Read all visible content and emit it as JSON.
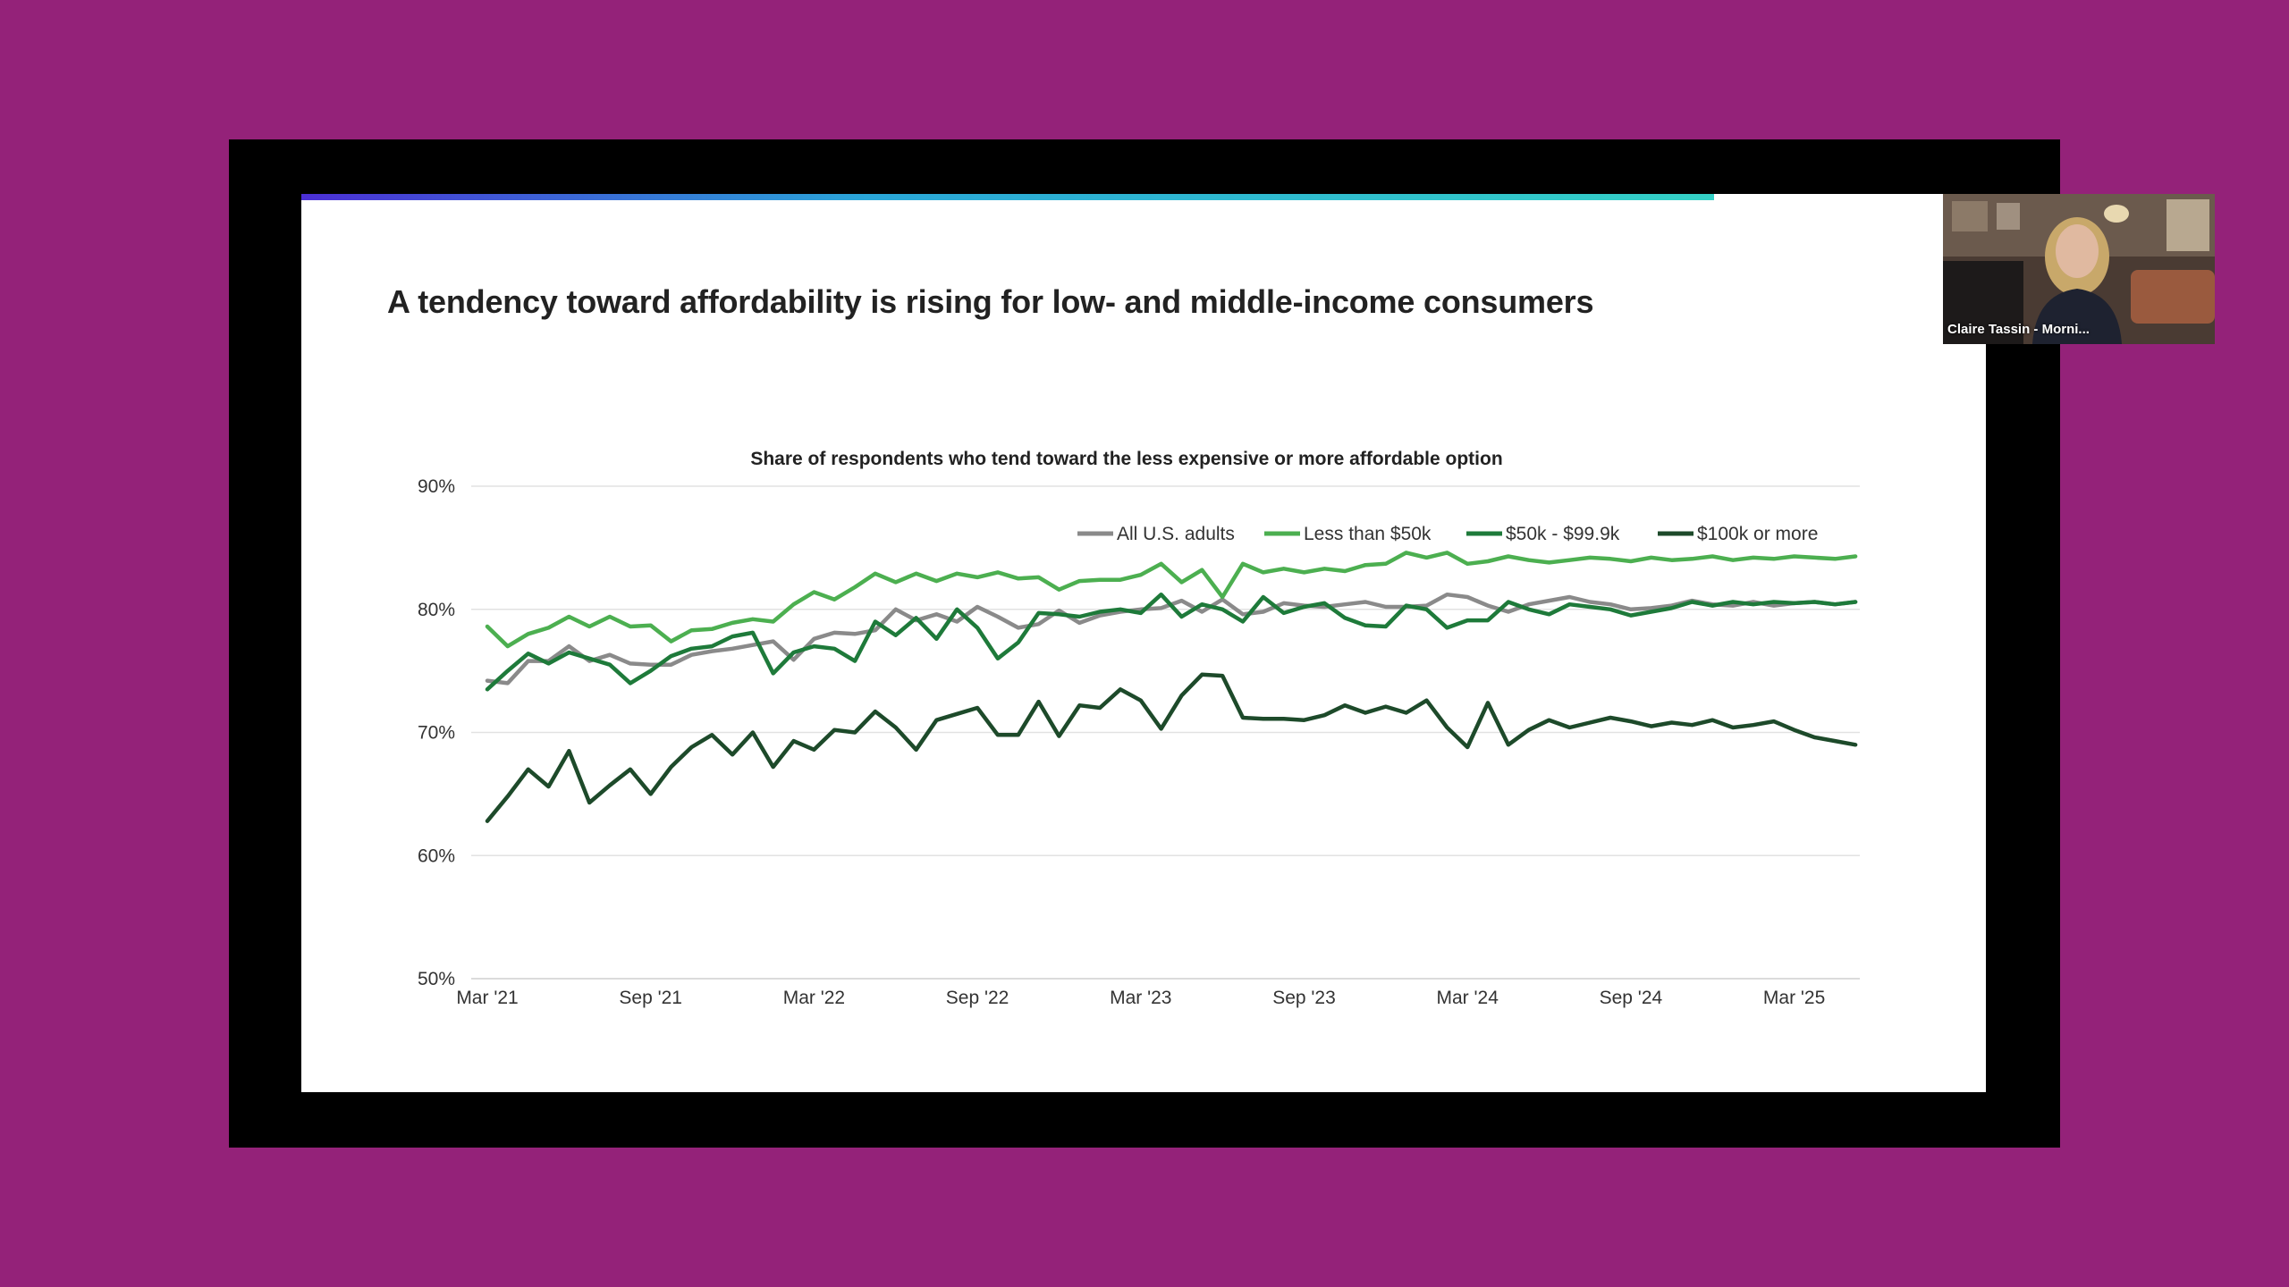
{
  "slide": {
    "title": "A tendency toward affordability is rising for low- and middle-income consumers"
  },
  "video": {
    "participant_name": "Claire Tassin - Morni..."
  },
  "colors": {
    "background": "#942279",
    "frame": "#000000",
    "slide": "#ffffff"
  },
  "chart_data": {
    "type": "line",
    "title": "Share of respondents who tend toward the less expensive or more affordable option",
    "xlabel": "",
    "ylabel": "",
    "ylim": [
      50,
      90
    ],
    "yticks": [
      "90%",
      "80%",
      "70%",
      "60%",
      "50%"
    ],
    "ytick_values": [
      90,
      80,
      70,
      60,
      50
    ],
    "x_tick_labels": [
      "Mar '21",
      "Sep '21",
      "Mar '22",
      "Sep '22",
      "Mar '23",
      "Sep '23",
      "Mar '24",
      "Sep '24",
      "Mar '25"
    ],
    "x_tick_months": [
      0,
      6,
      12,
      18,
      24,
      30,
      36,
      42,
      48
    ],
    "x_months": [
      0,
      0.75,
      1.5,
      2.25,
      3,
      3.75,
      4.5,
      5.25,
      6,
      6.75,
      7.5,
      8.25,
      9,
      9.75,
      10.5,
      11.25,
      12,
      12.75,
      13.5,
      14.25,
      15,
      15.75,
      16.5,
      17.25,
      18,
      18.75,
      19.5,
      20.25,
      21,
      21.75,
      22.5,
      23.25,
      24,
      24.75,
      25.5,
      26.25,
      27,
      27.75,
      28.5,
      29.25,
      30,
      30.75,
      31.5,
      32.25,
      33,
      33.75,
      34.5,
      35.25,
      36,
      36.75,
      37.5,
      38.25,
      39,
      39.75,
      40.5,
      41.25,
      42,
      42.75,
      43.5,
      44.25,
      45,
      45.75,
      46.5,
      47.25,
      48,
      48.75,
      49.5,
      50.25
    ],
    "legend_position": "top-center",
    "grid": true,
    "series": [
      {
        "name": "All U.S. adults",
        "color": "#8a8a8a",
        "values": [
          74.2,
          74.0,
          75.8,
          75.8,
          77.0,
          75.8,
          76.3,
          75.6,
          75.5,
          75.5,
          76.3,
          76.6,
          76.8,
          77.1,
          77.4,
          75.9,
          77.6,
          78.1,
          78.0,
          78.3,
          80.0,
          79.1,
          79.6,
          79.0,
          80.2,
          79.4,
          78.5,
          78.8,
          79.9,
          78.9,
          79.5,
          79.8,
          80.0,
          80.1,
          80.7,
          79.8,
          80.8,
          79.6,
          79.8,
          80.5,
          80.3,
          80.2,
          80.4,
          80.6,
          80.2,
          80.2,
          80.3,
          81.2,
          81.0,
          80.3,
          79.8,
          80.4,
          80.7,
          81.0,
          80.6,
          80.4,
          80.0,
          80.1,
          80.3,
          80.7,
          80.4,
          80.3,
          80.6,
          80.3,
          80.5,
          80.6,
          80.4,
          80.6
        ]
      },
      {
        "name": "Less than $50k",
        "color": "#4caf50",
        "values": [
          78.6,
          77.0,
          78.0,
          78.5,
          79.4,
          78.6,
          79.4,
          78.6,
          78.7,
          77.4,
          78.3,
          78.4,
          78.9,
          79.2,
          79.0,
          80.4,
          81.4,
          80.8,
          81.8,
          82.9,
          82.2,
          82.9,
          82.3,
          82.9,
          82.6,
          83.0,
          82.5,
          82.6,
          81.6,
          82.3,
          82.4,
          82.4,
          82.8,
          83.7,
          82.2,
          83.2,
          81.0,
          83.7,
          83.0,
          83.3,
          83.0,
          83.3,
          83.1,
          83.6,
          83.7,
          84.6,
          84.2,
          84.6,
          83.7,
          83.9,
          84.3,
          84.0,
          83.8,
          84.0,
          84.2,
          84.1,
          83.9,
          84.2,
          84.0,
          84.1,
          84.3,
          84.0,
          84.2,
          84.1,
          84.3,
          84.2,
          84.1,
          84.3
        ]
      },
      {
        "name": "$50k - $99.9k",
        "color": "#1e7a3a",
        "values": [
          73.5,
          75.0,
          76.4,
          75.6,
          76.5,
          76.0,
          75.5,
          74.0,
          75.0,
          76.2,
          76.8,
          77.0,
          77.8,
          78.1,
          74.8,
          76.5,
          77.0,
          76.8,
          75.8,
          79.0,
          77.9,
          79.3,
          77.6,
          80.0,
          78.5,
          76.0,
          77.3,
          79.7,
          79.6,
          79.4,
          79.8,
          80.0,
          79.7,
          81.2,
          79.4,
          80.4,
          80.0,
          79.0,
          81.0,
          79.7,
          80.2,
          80.5,
          79.3,
          78.7,
          78.6,
          80.3,
          80.0,
          78.5,
          79.1,
          79.1,
          80.6,
          80.0,
          79.6,
          80.4,
          80.2,
          80.0,
          79.5,
          79.8,
          80.1,
          80.6,
          80.3,
          80.6,
          80.4,
          80.6,
          80.5,
          80.6,
          80.4,
          80.6
        ]
      },
      {
        "name": "$100k or more",
        "color": "#1d4a2a",
        "values": [
          62.8,
          64.8,
          67.0,
          65.6,
          68.5,
          64.3,
          65.7,
          67.0,
          65.0,
          67.2,
          68.8,
          69.8,
          68.2,
          70.0,
          67.2,
          69.3,
          68.6,
          70.2,
          70.0,
          71.7,
          70.4,
          68.6,
          71.0,
          71.5,
          72.0,
          69.8,
          69.8,
          72.5,
          69.7,
          72.2,
          72.0,
          73.5,
          72.6,
          70.3,
          73.0,
          74.7,
          74.6,
          71.2,
          71.1,
          71.1,
          71.0,
          71.4,
          72.2,
          71.6,
          72.1,
          71.6,
          72.6,
          70.4,
          68.8,
          72.4,
          69.0,
          70.2,
          71.0,
          70.4,
          70.8,
          71.2,
          70.9,
          70.5,
          70.8,
          70.6,
          71.0,
          70.4,
          70.6,
          70.9,
          70.2,
          69.6,
          69.3,
          69.0
        ]
      }
    ]
  }
}
